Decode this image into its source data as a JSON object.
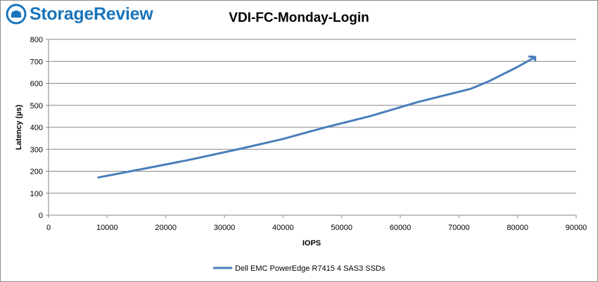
{
  "brand": {
    "name": "StorageReview",
    "logo_color": "#1a74bb"
  },
  "chart_data": {
    "type": "line",
    "title": "VDI-FC-Monday-Login",
    "xlabel": "IOPS",
    "ylabel": "Latency (µs)",
    "xlim": [
      0,
      90000
    ],
    "ylim": [
      0,
      800
    ],
    "x_ticks": [
      0,
      10000,
      20000,
      30000,
      40000,
      50000,
      60000,
      70000,
      80000,
      90000
    ],
    "y_ticks": [
      0,
      100,
      200,
      300,
      400,
      500,
      600,
      700,
      800
    ],
    "grid": "horizontal",
    "legend_position": "bottom",
    "series": [
      {
        "name": "Dell EMC PowerEdge R7415 4 SAS3 SSDs",
        "color": "#4a7ebb",
        "points": [
          [
            8500,
            172
          ],
          [
            16000,
            210
          ],
          [
            24000,
            252
          ],
          [
            32000,
            298
          ],
          [
            40000,
            347
          ],
          [
            47000,
            398
          ],
          [
            55000,
            452
          ],
          [
            63000,
            515
          ],
          [
            72000,
            575
          ],
          [
            75000,
            608
          ],
          [
            80000,
            675
          ],
          [
            82500,
            712
          ],
          [
            83000,
            720
          ],
          [
            82000,
            722
          ],
          [
            83000,
            718
          ],
          [
            83000,
            705
          ],
          [
            82800,
            717
          ]
        ]
      }
    ]
  }
}
